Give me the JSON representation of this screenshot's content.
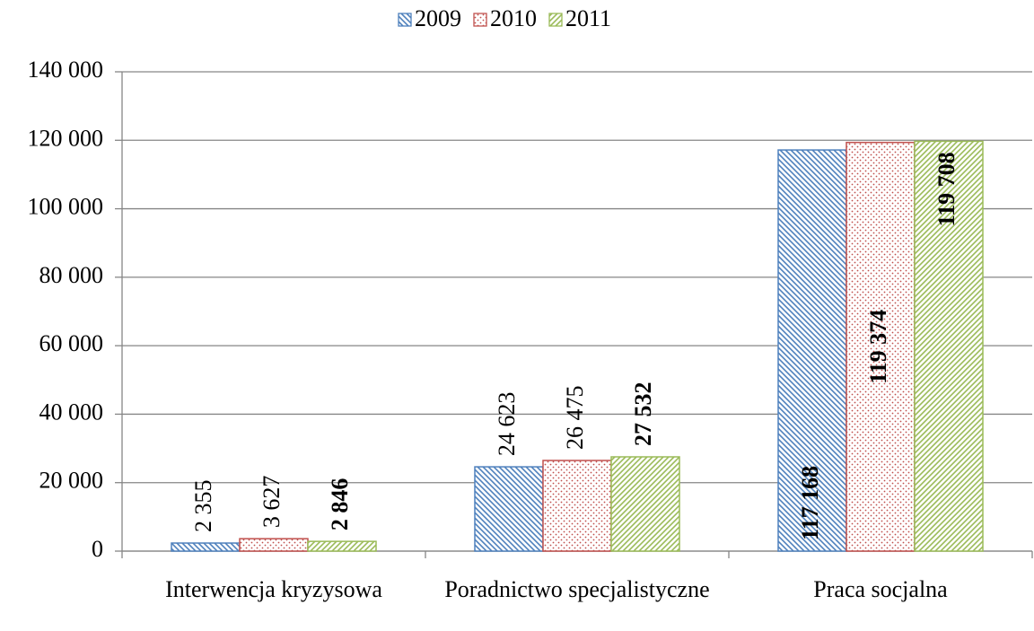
{
  "chart_data": {
    "type": "bar",
    "categories": [
      "Interwencja kryzysowa",
      "Poradnictwo specjalistyczne",
      "Praca socjalna"
    ],
    "series": [
      {
        "name": "2009",
        "color": "#4f81bd",
        "values": [
          2355,
          24623,
          117168
        ],
        "value_labels": [
          "2 355",
          "24 623",
          "117 168"
        ]
      },
      {
        "name": "2010",
        "color": "#c0504d",
        "values": [
          3627,
          26475,
          119374
        ],
        "value_labels": [
          "3 627",
          "26 475",
          "119 374"
        ]
      },
      {
        "name": "2011",
        "color": "#9bbb59",
        "values": [
          2846,
          27532,
          119708
        ],
        "value_labels": [
          "2 846",
          "27 532",
          "119 708"
        ]
      }
    ],
    "ylim": [
      0,
      140000
    ],
    "yticks": [
      0,
      {
        "value": 20000,
        "label": "20 000"
      },
      {
        "value": 40000,
        "label": "40 000"
      },
      {
        "value": 60000,
        "label": "60 000"
      },
      {
        "value": 80000,
        "label": "80 000"
      },
      {
        "value": 100000,
        "label": "100 000"
      },
      {
        "value": 120000,
        "label": "120 000"
      },
      {
        "value": 140000,
        "label": "140 000"
      }
    ],
    "grid": true,
    "legend": "top"
  }
}
